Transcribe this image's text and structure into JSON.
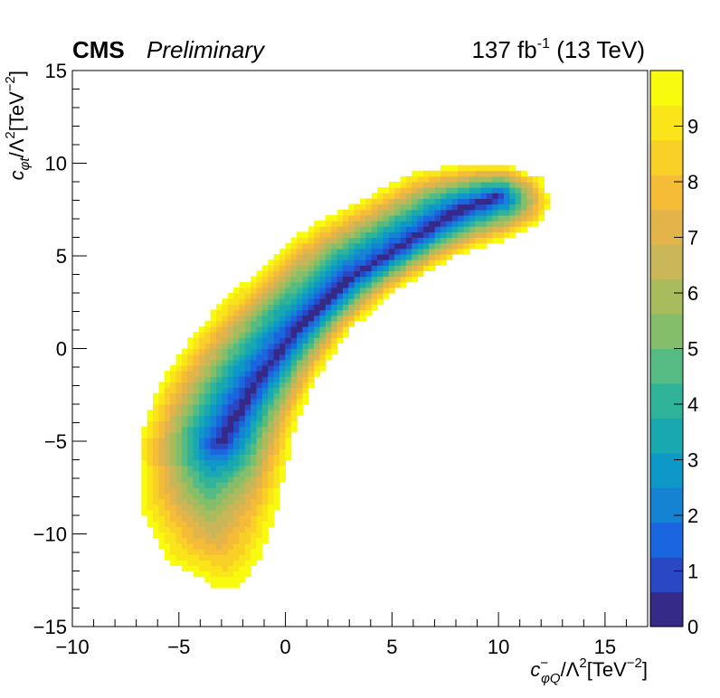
{
  "header": {
    "experiment": "CMS",
    "status": "Preliminary",
    "lumi_value": "137 fb",
    "lumi_exp": "-1",
    "energy": "(13 TeV)"
  },
  "chart_data": {
    "type": "heatmap",
    "title": "",
    "xlabel": {
      "sym": "c",
      "sub": "φQ",
      "sup": "−",
      "den": "/Λ",
      "den_exp": "2",
      "unit": "[TeV",
      "unit_exp": "−2",
      "close": "]"
    },
    "ylabel": {
      "sym": "c",
      "sub": "φt",
      "den": "/Λ",
      "den_exp": "2",
      "unit": "[TeV",
      "unit_exp": "−2",
      "close": "]"
    },
    "xlim": [
      -10,
      17
    ],
    "ylim": [
      -15,
      15
    ],
    "x_ticks": [
      {
        "value": -10,
        "label": "−10"
      },
      {
        "value": -5,
        "label": "−5"
      },
      {
        "value": 0,
        "label": "0"
      },
      {
        "value": 5,
        "label": "5"
      },
      {
        "value": 10,
        "label": "10"
      },
      {
        "value": 15,
        "label": "15"
      }
    ],
    "y_ticks": [
      {
        "value": -15,
        "label": "−15"
      },
      {
        "value": -10,
        "label": "−10"
      },
      {
        "value": -5,
        "label": "−5"
      },
      {
        "value": 0,
        "label": "0"
      },
      {
        "value": 5,
        "label": "5"
      },
      {
        "value": 10,
        "label": "10"
      },
      {
        "value": 15,
        "label": "15"
      }
    ],
    "z_range": [
      0,
      10
    ],
    "z_ticks": [
      {
        "value": 0,
        "label": "0"
      },
      {
        "value": 1,
        "label": "1"
      },
      {
        "value": 2,
        "label": "2"
      },
      {
        "value": 3,
        "label": "3"
      },
      {
        "value": 4,
        "label": "4"
      },
      {
        "value": 5,
        "label": "5"
      },
      {
        "value": 6,
        "label": "6"
      },
      {
        "value": 7,
        "label": "7"
      },
      {
        "value": 8,
        "label": "8"
      },
      {
        "value": 9,
        "label": "9"
      }
    ],
    "colorscale": [
      "#352a87",
      "#2a48c4",
      "#1a66e0",
      "#1582d2",
      "#0d98c8",
      "#1aa8b0",
      "#2fb49a",
      "#55bb82",
      "#84be6a",
      "#a8bc5e",
      "#c8b658",
      "#e2b44a",
      "#f5bc38",
      "#f8d027",
      "#f9e51a",
      "#f9fb0e"
    ],
    "valley_centerline": [
      {
        "x": -3.0,
        "y": -5.0
      },
      {
        "x": -1.5,
        "y": -2.0
      },
      {
        "x": 0.5,
        "y": 1.0
      },
      {
        "x": 3.0,
        "y": 3.8
      },
      {
        "x": 5.5,
        "y": 5.6
      },
      {
        "x": 8.0,
        "y": 7.4
      },
      {
        "x": 10.0,
        "y": 8.2
      }
    ],
    "contour_boundary": [
      {
        "x": -3.0,
        "y": -13.0
      },
      {
        "x": -5.5,
        "y": -11.5
      },
      {
        "x": -6.8,
        "y": -8.5
      },
      {
        "x": -6.9,
        "y": -5.0
      },
      {
        "x": -6.0,
        "y": -2.0
      },
      {
        "x": -4.5,
        "y": 0.5
      },
      {
        "x": -3.0,
        "y": 2.5
      },
      {
        "x": -1.0,
        "y": 4.5
      },
      {
        "x": 1.0,
        "y": 6.5
      },
      {
        "x": 3.5,
        "y": 8.0
      },
      {
        "x": 6.0,
        "y": 9.5
      },
      {
        "x": 8.5,
        "y": 10.0
      },
      {
        "x": 10.5,
        "y": 9.9
      },
      {
        "x": 12.0,
        "y": 9.2
      },
      {
        "x": 12.5,
        "y": 8.0
      },
      {
        "x": 12.0,
        "y": 6.8
      },
      {
        "x": 10.5,
        "y": 6.0
      },
      {
        "x": 8.0,
        "y": 5.0
      },
      {
        "x": 5.0,
        "y": 3.0
      },
      {
        "x": 3.0,
        "y": 1.0
      },
      {
        "x": 1.5,
        "y": -1.5
      },
      {
        "x": 0.5,
        "y": -4.0
      },
      {
        "x": 0.0,
        "y": -6.5
      },
      {
        "x": -0.5,
        "y": -9.0
      },
      {
        "x": -1.3,
        "y": -11.5
      },
      {
        "x": -2.2,
        "y": -12.8
      }
    ]
  }
}
